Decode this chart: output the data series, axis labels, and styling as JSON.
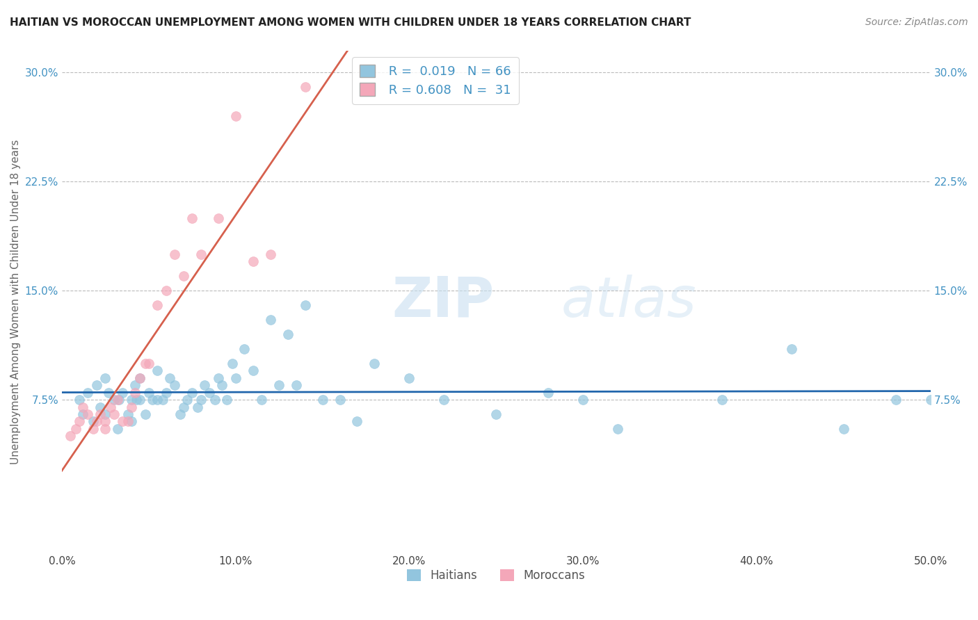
{
  "title": "HAITIAN VS MOROCCAN UNEMPLOYMENT AMONG WOMEN WITH CHILDREN UNDER 18 YEARS CORRELATION CHART",
  "source": "Source: ZipAtlas.com",
  "ylabel": "Unemployment Among Women with Children Under 18 years",
  "xlim": [
    0.0,
    0.5
  ],
  "ylim": [
    -0.03,
    0.315
  ],
  "xticks": [
    0.0,
    0.1,
    0.2,
    0.3,
    0.4,
    0.5
  ],
  "xticklabels": [
    "0.0%",
    "10.0%",
    "20.0%",
    "30.0%",
    "40.0%",
    "50.0%"
  ],
  "yticks": [
    0.075,
    0.15,
    0.225,
    0.3
  ],
  "yticklabels": [
    "7.5%",
    "15.0%",
    "22.5%",
    "30.0%"
  ],
  "haitian_R": "0.019",
  "haitian_N": "66",
  "moroccan_R": "0.608",
  "moroccan_N": "31",
  "haitian_color": "#92c5de",
  "moroccan_color": "#f4a7b9",
  "haitian_line_color": "#2166ac",
  "moroccan_line_color": "#d6604d",
  "tick_label_color": "#4393c3",
  "grid_color": "#bbbbbb",
  "background_color": "#ffffff",
  "haitian_x": [
    0.01,
    0.012,
    0.015,
    0.018,
    0.02,
    0.022,
    0.025,
    0.025,
    0.027,
    0.03,
    0.032,
    0.033,
    0.035,
    0.038,
    0.04,
    0.04,
    0.042,
    0.043,
    0.045,
    0.045,
    0.048,
    0.05,
    0.052,
    0.055,
    0.055,
    0.058,
    0.06,
    0.062,
    0.065,
    0.068,
    0.07,
    0.072,
    0.075,
    0.078,
    0.08,
    0.082,
    0.085,
    0.088,
    0.09,
    0.092,
    0.095,
    0.098,
    0.1,
    0.105,
    0.11,
    0.115,
    0.12,
    0.125,
    0.13,
    0.135,
    0.14,
    0.15,
    0.16,
    0.17,
    0.18,
    0.2,
    0.22,
    0.25,
    0.28,
    0.3,
    0.32,
    0.38,
    0.42,
    0.45,
    0.48,
    0.5
  ],
  "haitian_y": [
    0.075,
    0.065,
    0.08,
    0.06,
    0.085,
    0.07,
    0.065,
    0.09,
    0.08,
    0.075,
    0.055,
    0.075,
    0.08,
    0.065,
    0.06,
    0.075,
    0.085,
    0.075,
    0.09,
    0.075,
    0.065,
    0.08,
    0.075,
    0.095,
    0.075,
    0.075,
    0.08,
    0.09,
    0.085,
    0.065,
    0.07,
    0.075,
    0.08,
    0.07,
    0.075,
    0.085,
    0.08,
    0.075,
    0.09,
    0.085,
    0.075,
    0.1,
    0.09,
    0.11,
    0.095,
    0.075,
    0.13,
    0.085,
    0.12,
    0.085,
    0.14,
    0.075,
    0.075,
    0.06,
    0.1,
    0.09,
    0.075,
    0.065,
    0.08,
    0.075,
    0.055,
    0.075,
    0.11,
    0.055,
    0.075,
    0.075
  ],
  "moroccan_x": [
    0.005,
    0.008,
    0.01,
    0.012,
    0.015,
    0.018,
    0.02,
    0.022,
    0.025,
    0.025,
    0.028,
    0.03,
    0.032,
    0.035,
    0.038,
    0.04,
    0.042,
    0.045,
    0.048,
    0.05,
    0.055,
    0.06,
    0.065,
    0.07,
    0.075,
    0.08,
    0.09,
    0.1,
    0.11,
    0.12,
    0.14
  ],
  "moroccan_y": [
    0.05,
    0.055,
    0.06,
    0.07,
    0.065,
    0.055,
    0.06,
    0.065,
    0.06,
    0.055,
    0.07,
    0.065,
    0.075,
    0.06,
    0.06,
    0.07,
    0.08,
    0.09,
    0.1,
    0.1,
    0.14,
    0.15,
    0.175,
    0.16,
    0.2,
    0.175,
    0.2,
    0.27,
    0.17,
    0.175,
    0.29
  ]
}
